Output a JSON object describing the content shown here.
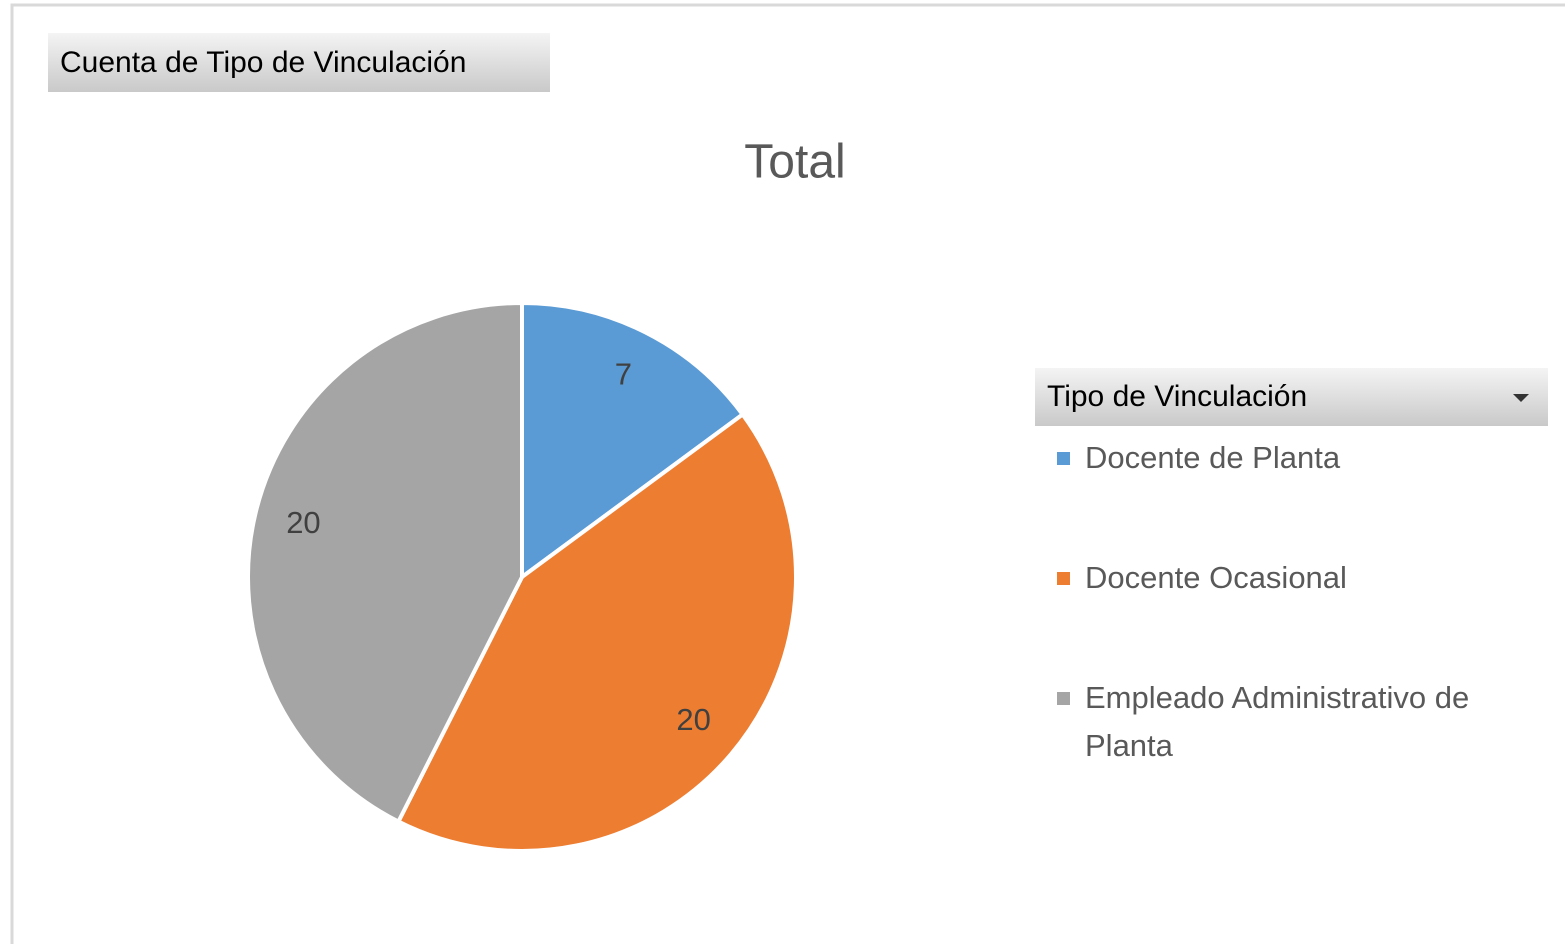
{
  "chart_data": {
    "type": "pie",
    "title": "Total",
    "value_field": "Cuenta de Tipo de Vinculación",
    "legend_title": "Tipo de Vinculación",
    "legend_position": "right",
    "categories": [
      "Docente de Planta",
      "Docente Ocasional",
      "Empleado Administrativo de Planta"
    ],
    "values": [
      7,
      20,
      20
    ],
    "colors": [
      "#5b9bd5",
      "#ed7d31",
      "#a5a5a5"
    ]
  }
}
